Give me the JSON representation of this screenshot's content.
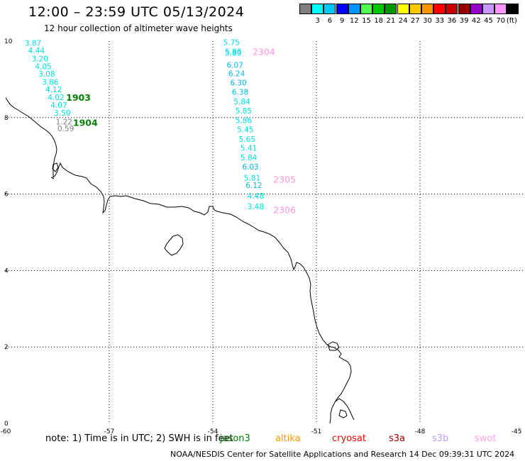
{
  "header": {
    "title": "12:00 – 23:59 UTC 05/13/2024",
    "subtitle": "12 hour collection of altimeter wave heights"
  },
  "legend": {
    "unit": "(ft)",
    "items": [
      {
        "color": "#7f7f7f",
        "label": ""
      },
      {
        "color": "#00ffff",
        "label": "3"
      },
      {
        "color": "#00c8ff",
        "label": "6"
      },
      {
        "color": "#0000ff",
        "label": "9"
      },
      {
        "color": "#0096ff",
        "label": "12"
      },
      {
        "color": "#4cff4c",
        "label": "15"
      },
      {
        "color": "#00c800",
        "label": "18"
      },
      {
        "color": "#009600",
        "label": "21"
      },
      {
        "color": "#ffff00",
        "label": "24"
      },
      {
        "color": "#ffc800",
        "label": "27"
      },
      {
        "color": "#ff9600",
        "label": "30"
      },
      {
        "color": "#ff0000",
        "label": "33"
      },
      {
        "color": "#c80000",
        "label": "36"
      },
      {
        "color": "#960000",
        "label": "39"
      },
      {
        "color": "#9600c8",
        "label": "42"
      },
      {
        "color": "#c896ff",
        "label": "45"
      },
      {
        "color": "#ff96ff",
        "label": "70"
      },
      {
        "color": "#000000",
        "label": ""
      }
    ]
  },
  "map": {
    "lon_ticks": [
      {
        "value": -60,
        "label": "-60"
      },
      {
        "value": -57,
        "label": "-57"
      },
      {
        "value": -54,
        "label": "-54"
      },
      {
        "value": -51,
        "label": "-51"
      },
      {
        "value": -48,
        "label": "-48"
      },
      {
        "value": -45,
        "label": "-45"
      }
    ],
    "lat_ticks": [
      {
        "value": 0,
        "label": "0"
      },
      {
        "value": 2,
        "label": "2"
      },
      {
        "value": 4,
        "label": "4"
      },
      {
        "value": 6,
        "label": "6"
      },
      {
        "value": 8,
        "label": "8"
      },
      {
        "value": 10,
        "label": "10"
      }
    ],
    "tracks": [
      {
        "id": "1903",
        "color": "#008000",
        "label_lon": -58.25,
        "label_lat": 8.44,
        "points": [
          {
            "lon": -59.45,
            "lat": 9.88,
            "value": "3.87",
            "color": "#00e0e0"
          },
          {
            "lon": -59.35,
            "lat": 9.68,
            "value": "4.44",
            "color": "#00e0e0"
          },
          {
            "lon": -59.25,
            "lat": 9.47,
            "value": "3.20",
            "color": "#00e0e0"
          },
          {
            "lon": -59.15,
            "lat": 9.27,
            "value": "4.05",
            "color": "#00e0e0"
          },
          {
            "lon": -59.05,
            "lat": 9.07,
            "value": "3.08",
            "color": "#00e0e0"
          },
          {
            "lon": -58.95,
            "lat": 8.86,
            "value": "3.86",
            "color": "#00e0e0"
          },
          {
            "lon": -58.85,
            "lat": 8.66,
            "value": "4.12",
            "color": "#00e0e0"
          },
          {
            "lon": -58.78,
            "lat": 8.46,
            "value": "4.02",
            "color": "#00e0e0"
          },
          {
            "lon": -58.7,
            "lat": 8.26,
            "value": "4.07",
            "color": "#00e0e0"
          },
          {
            "lon": -58.6,
            "lat": 8.05,
            "value": "3.50",
            "color": "#00e0e0"
          }
        ]
      },
      {
        "id": "1904",
        "color": "#008000",
        "label_lon": -58.05,
        "label_lat": 7.78,
        "points": [
          {
            "lon": -58.55,
            "lat": 7.82,
            "value": "1.22",
            "color": "#808080"
          },
          {
            "lon": -58.5,
            "lat": 7.64,
            "value": "0.59",
            "color": "#808080"
          }
        ]
      },
      {
        "id": "2304",
        "color": "#ff90e0",
        "label_lon": -52.85,
        "label_lat": 9.64,
        "points": [
          {
            "lon": -53.7,
            "lat": 9.9,
            "value": "5.75",
            "color": "#00e0e0"
          },
          {
            "lon": -53.65,
            "lat": 9.66,
            "value": "5.88",
            "color": "#00e0e0"
          },
          {
            "lon": -53.65,
            "lat": 9.62,
            "value": "5.89",
            "color": "#00e0e0"
          },
          {
            "lon": -53.6,
            "lat": 9.3,
            "value": "6.07",
            "color": "#00b8e8"
          },
          {
            "lon": -53.55,
            "lat": 9.08,
            "value": "6.24",
            "color": "#00b8e8"
          },
          {
            "lon": -53.5,
            "lat": 8.84,
            "value": "6.30",
            "color": "#00b8e8"
          },
          {
            "lon": -53.45,
            "lat": 8.6,
            "value": "6.38",
            "color": "#00b8e8"
          },
          {
            "lon": -53.4,
            "lat": 8.35,
            "value": "5.84",
            "color": "#00e0e0"
          },
          {
            "lon": -53.35,
            "lat": 8.11,
            "value": "5.85",
            "color": "#00e0e0"
          },
          {
            "lon": -53.35,
            "lat": 7.86,
            "value": "5.86",
            "color": "#00e0e0"
          },
          {
            "lon": -53.3,
            "lat": 7.62,
            "value": "5.45",
            "color": "#00e0e0"
          },
          {
            "lon": -53.25,
            "lat": 7.37,
            "value": "5.65",
            "color": "#00e0e0"
          },
          {
            "lon": -53.2,
            "lat": 7.13,
            "value": "5.41",
            "color": "#00e0e0"
          },
          {
            "lon": -53.2,
            "lat": 6.88,
            "value": "5.84",
            "color": "#00e0e0"
          },
          {
            "lon": -53.15,
            "lat": 6.64,
            "value": "6.03",
            "color": "#00b8e8"
          }
        ]
      },
      {
        "id": "2305",
        "color": "#ff90e0",
        "label_lon": -52.25,
        "label_lat": 6.3,
        "points": [
          {
            "lon": -53.1,
            "lat": 6.35,
            "value": "5.81",
            "color": "#00e0e0"
          },
          {
            "lon": -53.05,
            "lat": 6.16,
            "value": "6.12",
            "color": "#00b8e8"
          }
        ]
      },
      {
        "id": "2306",
        "color": "#ff90e0",
        "label_lon": -52.25,
        "label_lat": 5.5,
        "points": [
          {
            "lon": -53.0,
            "lat": 5.88,
            "value": "4.48",
            "color": "#00e0e0"
          },
          {
            "lon": -53.0,
            "lat": 5.6,
            "value": "3.48",
            "color": "#00e0e0"
          }
        ]
      }
    ]
  },
  "footer": {
    "note": "note:  1) Time is in UTC; 2) SWH is in feet",
    "satellites": [
      {
        "name": "jason3",
        "color": "#008000"
      },
      {
        "name": "altika",
        "color": "#ff9600"
      },
      {
        "name": "cryosat",
        "color": "#ff0000"
      },
      {
        "name": "s3a",
        "color": "#a00000"
      },
      {
        "name": "s3b",
        "color": "#c0a0ff"
      },
      {
        "name": "swot",
        "color": "#ffa0e0"
      }
    ],
    "credit": "NOAA/NESDIS Center for Satellite Applications and Research    14 Dec 09:39:31 UTC 2024"
  }
}
